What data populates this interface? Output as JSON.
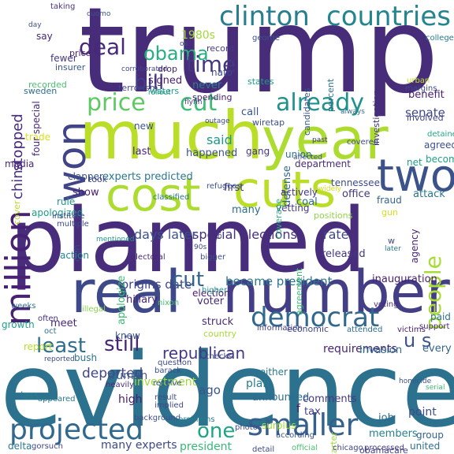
{
  "words": [
    {
      "text": "trump",
      "color": "#472c7a"
    },
    {
      "text": "much",
      "color": "#bade28"
    },
    {
      "text": "year",
      "color": "#addc30"
    },
    {
      "text": "evidence",
      "color": "#2c728e"
    },
    {
      "text": "planned",
      "color": "#472d7b"
    },
    {
      "text": "real",
      "color": "#3e4989"
    },
    {
      "text": "number",
      "color": "#433e85"
    },
    {
      "text": "cost",
      "color": "#addc30"
    },
    {
      "text": "cuts",
      "color": "#bade28"
    },
    {
      "text": "two",
      "color": "#3b528b"
    },
    {
      "text": "million",
      "color": "#482173"
    },
    {
      "text": "won",
      "color": "#414487"
    },
    {
      "text": "clinton",
      "color": "#287d8e"
    },
    {
      "text": "countries",
      "color": "#25858e"
    },
    {
      "text": "price",
      "color": "#5ec962"
    },
    {
      "text": "cut",
      "color": "#3dbc74"
    },
    {
      "text": "already",
      "color": "#20928c"
    },
    {
      "text": "deal",
      "color": "#482878"
    },
    {
      "text": "obama",
      "color": "#29af7f"
    },
    {
      "text": "democrat",
      "color": "#31688e"
    },
    {
      "text": "projected",
      "color": "#31688e"
    },
    {
      "text": "smaller",
      "color": "#35608d"
    },
    {
      "text": "least",
      "color": "#2e6f8e"
    },
    {
      "text": "still",
      "color": "#482576"
    },
    {
      "text": "people",
      "color": "#a8db34"
    },
    {
      "text": "republican",
      "color": "#443983"
    },
    {
      "text": "time",
      "color": "#453882"
    },
    {
      "text": "bill",
      "color": "#433e85"
    },
    {
      "text": "one",
      "color": "#20a486"
    },
    {
      "text": "u s",
      "color": "#3b528b"
    },
    {
      "text": "s",
      "color": "#482878"
    },
    {
      "text": "stopped",
      "color": "#482979"
    },
    {
      "text": "china",
      "color": "#46327e"
    },
    {
      "text": "became president",
      "color": "#2a768e"
    },
    {
      "text": "special elections",
      "color": "#472f7d"
    },
    {
      "text": "days later",
      "color": "#3b528b"
    },
    {
      "text": "origins date",
      "color": "#404688"
    },
    {
      "text": "experts predicted",
      "color": "#2a778e"
    },
    {
      "text": "many experts",
      "color": "#3e4a89"
    },
    {
      "text": "president",
      "color": "#37b878"
    },
    {
      "text": "deported",
      "color": "#404588"
    },
    {
      "text": "signed",
      "color": "#481d6f"
    },
    {
      "text": "never",
      "color": "#26828e"
    },
    {
      "text": "said",
      "color": "#1f968b"
    },
    {
      "text": "happened",
      "color": "#3b528b"
    },
    {
      "text": "senate",
      "color": "#3f4788"
    },
    {
      "text": "benefit",
      "color": "#482173"
    },
    {
      "text": "agreed",
      "color": "#3c508b"
    },
    {
      "text": "become",
      "color": "#1fa088"
    },
    {
      "text": "office",
      "color": "#453781"
    },
    {
      "text": "attack",
      "color": "#2a768e"
    },
    {
      "text": "rate",
      "color": "#404688"
    },
    {
      "text": "fraud",
      "color": "#33638d"
    },
    {
      "text": "gun",
      "color": "#d2e21b"
    },
    {
      "text": "cut",
      "color": "#33638d"
    },
    {
      "text": "ago",
      "color": "#3a548c"
    },
    {
      "text": "plan",
      "color": "#287c8e"
    },
    {
      "text": "announced",
      "color": "#2f6c8e"
    },
    {
      "text": "comments",
      "color": "#453882"
    },
    {
      "text": "requirements",
      "color": "#482475"
    },
    {
      "text": "invasion",
      "color": "#2d718e"
    },
    {
      "text": "high",
      "color": "#481d6f"
    },
    {
      "text": "truman",
      "color": "#3a548c"
    },
    {
      "text": "investment",
      "color": "#a0da39"
    },
    {
      "text": "bush",
      "color": "#2c738e"
    },
    {
      "text": "point",
      "color": "#3e4a89"
    },
    {
      "text": "group",
      "color": "#33638d"
    },
    {
      "text": "job",
      "color": "#2f6b8e"
    },
    {
      "text": "members",
      "color": "#27808e"
    },
    {
      "text": "carter",
      "color": "#a0da39"
    },
    {
      "text": "tax",
      "color": "#424186"
    },
    {
      "text": "f",
      "color": "#481a6c"
    },
    {
      "text": "obamacare",
      "color": "#414487"
    },
    {
      "text": "united",
      "color": "#2e6e8e"
    },
    {
      "text": "inauguration",
      "color": "#481f70"
    },
    {
      "text": "released",
      "color": "#453781"
    },
    {
      "text": "first",
      "color": "#453581"
    },
    {
      "text": "many",
      "color": "#2d708e"
    },
    {
      "text": "show",
      "color": "#482173"
    },
    {
      "text": "rule",
      "color": "#1f958b"
    },
    {
      "text": "apologized",
      "color": "#1f9a8a"
    },
    {
      "text": "trade",
      "color": "#d8e219"
    },
    {
      "text": "media",
      "color": "#472a7a"
    },
    {
      "text": "last",
      "color": "#482677"
    },
    {
      "text": "new",
      "color": "#3b528b"
    },
    {
      "text": "call",
      "color": "#3a548c"
    },
    {
      "text": "defense",
      "color": "#32658e"
    },
    {
      "text": "union",
      "color": "#2c728e"
    },
    {
      "text": "gang",
      "color": "#463480"
    },
    {
      "text": "coal",
      "color": "#2e6e8e"
    },
    {
      "text": "agency",
      "color": "#482677"
    },
    {
      "text": "vetting",
      "color": "#443a83"
    },
    {
      "text": "positions",
      "color": "#8fd744"
    },
    {
      "text": "agreement",
      "color": "#3dbc74"
    },
    {
      "text": "economic",
      "color": "#3f4889"
    },
    {
      "text": "meet",
      "color": "#482979"
    },
    {
      "text": "voter",
      "color": "#472c7a"
    },
    {
      "text": "struck",
      "color": "#472c7a"
    },
    {
      "text": "country",
      "color": "#aadc32"
    },
    {
      "text": "neither",
      "color": "#2a768e"
    },
    {
      "text": "every",
      "color": "#33638d"
    },
    {
      "text": "growth",
      "color": "#1fa088"
    },
    {
      "text": "report",
      "color": "#b5de2b"
    },
    {
      "text": "less",
      "color": "#287d8e"
    },
    {
      "text": "delta",
      "color": "#2a788e"
    },
    {
      "text": "knew",
      "color": "#3a548c"
    },
    {
      "text": "surplus",
      "color": "#a0da39"
    },
    {
      "text": "hillary",
      "color": "#482475"
    },
    {
      "text": "election",
      "color": "#482173"
    },
    {
      "text": "apologize",
      "color": "#3dbc74"
    },
    {
      "text": "cnn",
      "color": "#414487"
    },
    {
      "text": "action",
      "color": "#25838e"
    },
    {
      "text": "1980s",
      "color": "#a2da37"
    },
    {
      "text": "record",
      "color": "#453882"
    },
    {
      "text": "nato",
      "color": "#3f4889"
    },
    {
      "text": "terrorism",
      "color": "#414487"
    },
    {
      "text": "waters",
      "color": "#1fa188"
    },
    {
      "text": "spending",
      "color": "#481f70"
    },
    {
      "text": "four special",
      "color": "#482979"
    },
    {
      "text": "fewer",
      "color": "#443983"
    },
    {
      "text": "say",
      "color": "#482677"
    },
    {
      "text": "insurer",
      "color": "#3a548c"
    },
    {
      "text": "price",
      "color": "#482071"
    },
    {
      "text": "recorded",
      "color": "#4ac16d"
    },
    {
      "text": "sweden",
      "color": "#2e6d8e"
    },
    {
      "text": "clapper",
      "color": "#3b528b"
    },
    {
      "text": "took",
      "color": "#404588"
    },
    {
      "text": "cover",
      "color": "#b8de29"
    },
    {
      "text": "investigation",
      "color": "#46327e"
    },
    {
      "text": "percent",
      "color": "#2c718e"
    },
    {
      "text": "candidates",
      "color": "#38588c"
    },
    {
      "text": "states",
      "color": "#1e9c89"
    },
    {
      "text": "wiretap",
      "color": "#3d4e8a"
    },
    {
      "text": "department",
      "color": "#472c7a"
    },
    {
      "text": "involved",
      "color": "#414487"
    },
    {
      "text": "tennessee",
      "color": "#3e4989"
    },
    {
      "text": "actively",
      "color": "#453581"
    },
    {
      "text": "coverage",
      "color": "#2ab07f"
    },
    {
      "text": "net",
      "color": "#1e9b8a"
    },
    {
      "text": "college",
      "color": "#287c8e"
    },
    {
      "text": "urban",
      "color": "#c2df23"
    },
    {
      "text": "margins",
      "color": "#3f4889"
    },
    {
      "text": "detained",
      "color": "#22a785"
    },
    {
      "text": "covered",
      "color": "#3e4a89"
    },
    {
      "text": "refugees",
      "color": "#3b528b"
    },
    {
      "text": "classified",
      "color": "#2a788e"
    },
    {
      "text": "institute",
      "color": "#3f4889"
    },
    {
      "text": "multiple",
      "color": "#3e4989"
    },
    {
      "text": "mentioned",
      "color": "#1f9a8a"
    },
    {
      "text": "electoral",
      "color": "#482677"
    },
    {
      "text": "bigger",
      "color": "#3d4d8a"
    },
    {
      "text": "higher",
      "color": "#1f948c"
    },
    {
      "text": "nixon",
      "color": "#4ac16d"
    },
    {
      "text": "illegal",
      "color": "#86d549"
    },
    {
      "text": "weeks",
      "color": "#2c728e"
    },
    {
      "text": "often",
      "color": "#46337f"
    },
    {
      "text": "oct",
      "color": "#2d708e"
    },
    {
      "text": "question",
      "color": "#3e4989"
    },
    {
      "text": "barack",
      "color": "#3c508b"
    },
    {
      "text": "checks",
      "color": "#3f4889"
    },
    {
      "text": "heavily",
      "color": "#472d7b"
    },
    {
      "text": "receive",
      "color": "#3b528b"
    },
    {
      "text": "appeared",
      "color": "#2a778e"
    },
    {
      "text": "reported",
      "color": "#3e4989"
    },
    {
      "text": "result",
      "color": "#3c4f8a"
    },
    {
      "text": "implied",
      "color": "#3f4788"
    },
    {
      "text": "background",
      "color": "#3d4e8a"
    },
    {
      "text": "problems",
      "color": "#287c8e"
    },
    {
      "text": "gorsuch",
      "color": "#404588"
    },
    {
      "text": "photos",
      "color": "#3e4a89"
    },
    {
      "text": "according",
      "color": "#3b528b"
    },
    {
      "text": "detail",
      "color": "#3e4a89"
    },
    {
      "text": "official",
      "color": "#4ac16d"
    },
    {
      "text": "chicago",
      "color": "#404588"
    },
    {
      "text": "processed",
      "color": "#453882"
    },
    {
      "text": "serial",
      "color": "#3fbc73"
    },
    {
      "text": "homicide",
      "color": "#3a548c"
    },
    {
      "text": "victims",
      "color": "#482173"
    },
    {
      "text": "support",
      "color": "#472a7a"
    },
    {
      "text": "attended",
      "color": "#2e6e8e"
    },
    {
      "text": "information",
      "color": "#433e85"
    },
    {
      "text": "paid",
      "color": "#2c728e"
    },
    {
      "text": "voting",
      "color": "#472f7d"
    },
    {
      "text": "later",
      "color": "#2a788e"
    },
    {
      "text": "w",
      "color": "#3e4a89"
    },
    {
      "text": "90s",
      "color": "#3f4889"
    },
    {
      "text": "h",
      "color": "#3b528b"
    },
    {
      "text": "widely",
      "color": "#d2e21b"
    },
    {
      "text": "past",
      "color": "#443983"
    },
    {
      "text": "affected",
      "color": "#3b528b"
    },
    {
      "text": "outage",
      "color": "#3e4a89"
    },
    {
      "text": "flynn",
      "color": "#443983"
    },
    {
      "text": "rollout",
      "color": "#1f9a8a"
    },
    {
      "text": "corroborated",
      "color": "#404588"
    },
    {
      "text": "drop",
      "color": "#482475"
    },
    {
      "text": "cuomo",
      "color": "#3b528b"
    },
    {
      "text": "george",
      "color": "#3b528b"
    },
    {
      "text": "taking",
      "color": "#463480"
    },
    {
      "text": "day",
      "color": "#3b528b"
    },
    {
      "text": "always",
      "color": "#2e6e8e"
    },
    {
      "text": "ok",
      "color": "#3e4989"
    }
  ]
}
